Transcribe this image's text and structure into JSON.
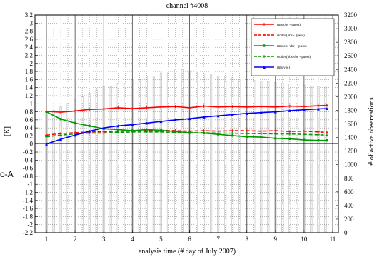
{
  "side_label": "o-A",
  "colors": {
    "obs_fg_red": "#ff0000",
    "stddev_red": "#ff0000",
    "bc_fg_green": "#009900",
    "stddev_bc_green": "#009900",
    "bc_blue": "#0000ff",
    "counts_gray": "#bbbbbb",
    "grid": "#555555"
  },
  "chart_data": {
    "type": "line",
    "title": "channel #4008",
    "xlabel": "analysis time (# day of July 2007)",
    "ylabel": "[K]",
    "y2label": "# of active observations",
    "xlim": [
      0.6,
      11.2
    ],
    "ylim": [
      -2.2,
      3.2
    ],
    "y2lim": [
      0,
      3200
    ],
    "xticks": [
      "1",
      "2",
      "3",
      "4",
      "5",
      "6",
      "7",
      "8",
      "9",
      "10",
      "11"
    ],
    "yticks": [
      "3.2",
      "3",
      "2.8",
      "2.6",
      "2.4",
      "2.2",
      "2",
      "1.8",
      "1.6",
      "1.4",
      "1.2",
      "1",
      "0.8",
      "0.6",
      "0.4",
      "0.2",
      "0",
      "-0.2",
      "-0.4",
      "-0.6",
      "-0.8",
      "-1",
      "-1.2",
      "-1.4",
      "-1.6",
      "-1.8",
      "-2",
      "-2.2"
    ],
    "y2ticks": [
      "3200",
      "3000",
      "2800",
      "2600",
      "2400",
      "2200",
      "2000",
      "1800",
      "1600",
      "1400",
      "1200",
      "1000",
      "800",
      "600",
      "400",
      "200",
      "0"
    ],
    "grid": true,
    "legend_position": "top-right",
    "series": [
      {
        "name": "rms(obs - guess)",
        "color_key": "obs_fg_red",
        "style": "solid",
        "x": [
          1,
          1.5,
          2,
          2.5,
          3,
          3.5,
          4,
          4.5,
          5,
          5.5,
          6,
          6.5,
          7,
          7.5,
          8,
          8.5,
          9,
          9.5,
          10,
          10.5,
          10.8
        ],
        "y": [
          0.81,
          0.79,
          0.82,
          0.86,
          0.87,
          0.9,
          0.88,
          0.9,
          0.92,
          0.93,
          0.9,
          0.94,
          0.92,
          0.93,
          0.92,
          0.93,
          0.92,
          0.94,
          0.93,
          0.95,
          0.96
        ]
      },
      {
        "name": "stddev(obs - guess)",
        "color_key": "stddev_red",
        "style": "dashed",
        "x": [
          1,
          1.5,
          2,
          2.5,
          3,
          3.5,
          4,
          4.5,
          5,
          5.5,
          6,
          6.5,
          7,
          7.5,
          8,
          8.5,
          9,
          9.5,
          10,
          10.5,
          10.8
        ],
        "y": [
          0.22,
          0.26,
          0.28,
          0.3,
          0.3,
          0.32,
          0.33,
          0.34,
          0.34,
          0.33,
          0.32,
          0.33,
          0.32,
          0.33,
          0.33,
          0.32,
          0.33,
          0.31,
          0.32,
          0.3,
          0.29
        ]
      },
      {
        "name": "rms(obs vbc - guess)",
        "color_key": "bc_fg_green",
        "style": "solid",
        "x": [
          1,
          1.5,
          2,
          2.5,
          3,
          3.5,
          4,
          4.5,
          5,
          5.5,
          6,
          6.5,
          7,
          7.5,
          8,
          8.5,
          9,
          9.5,
          10,
          10.5,
          10.8
        ],
        "y": [
          0.8,
          0.62,
          0.52,
          0.45,
          0.38,
          0.36,
          0.33,
          0.36,
          0.34,
          0.31,
          0.28,
          0.27,
          0.24,
          0.21,
          0.18,
          0.17,
          0.14,
          0.13,
          0.1,
          0.09,
          0.09
        ]
      },
      {
        "name": "stddev(obs vbc - guess)",
        "color_key": "stddev_bc_green",
        "style": "dashed",
        "x": [
          1,
          1.5,
          2,
          2.5,
          3,
          3.5,
          4,
          4.5,
          5,
          5.5,
          6,
          6.5,
          7,
          7.5,
          8,
          8.5,
          9,
          9.5,
          10,
          10.5,
          10.8
        ],
        "y": [
          0.18,
          0.22,
          0.25,
          0.27,
          0.27,
          0.29,
          0.3,
          0.3,
          0.3,
          0.29,
          0.28,
          0.28,
          0.27,
          0.27,
          0.26,
          0.26,
          0.25,
          0.25,
          0.24,
          0.23,
          0.22
        ]
      },
      {
        "name": "rms(vbc)",
        "color_key": "bc_blue",
        "style": "solid",
        "x": [
          1,
          1.5,
          2,
          2.5,
          3,
          3.5,
          4,
          4.5,
          5,
          5.5,
          6,
          6.5,
          7,
          7.5,
          8,
          8.5,
          9,
          9.5,
          10,
          10.5,
          10.8
        ],
        "y": [
          0.0,
          0.12,
          0.22,
          0.32,
          0.4,
          0.45,
          0.48,
          0.52,
          0.56,
          0.6,
          0.63,
          0.67,
          0.7,
          0.73,
          0.76,
          0.78,
          0.8,
          0.83,
          0.85,
          0.87,
          0.88
        ]
      }
    ],
    "counts": {
      "name": "# of active observations",
      "color_key": "counts_gray",
      "x": [
        1,
        1.25,
        1.5,
        1.75,
        2,
        2.25,
        2.5,
        2.75,
        3,
        3.25,
        3.5,
        3.75,
        4,
        4.25,
        4.5,
        4.75,
        5,
        5.25,
        5.5,
        5.75,
        6,
        6.25,
        6.5,
        6.75,
        7,
        7.25,
        7.5,
        7.75,
        8,
        8.25,
        8.5,
        8.75,
        9,
        9.25,
        9.5,
        9.75,
        10,
        10.25,
        10.5,
        10.75
      ],
      "values": [
        1750,
        1800,
        1850,
        1900,
        1950,
        2000,
        2050,
        2100,
        2150,
        2150,
        2200,
        2200,
        2250,
        2250,
        2300,
        2300,
        2350,
        2350,
        2400,
        2400,
        2380,
        2360,
        2340,
        2320,
        2300,
        2300,
        2280,
        2260,
        2250,
        2240,
        2230,
        2220,
        2210,
        2200,
        2190,
        2180,
        2170,
        2160,
        2150,
        2140
      ]
    }
  }
}
